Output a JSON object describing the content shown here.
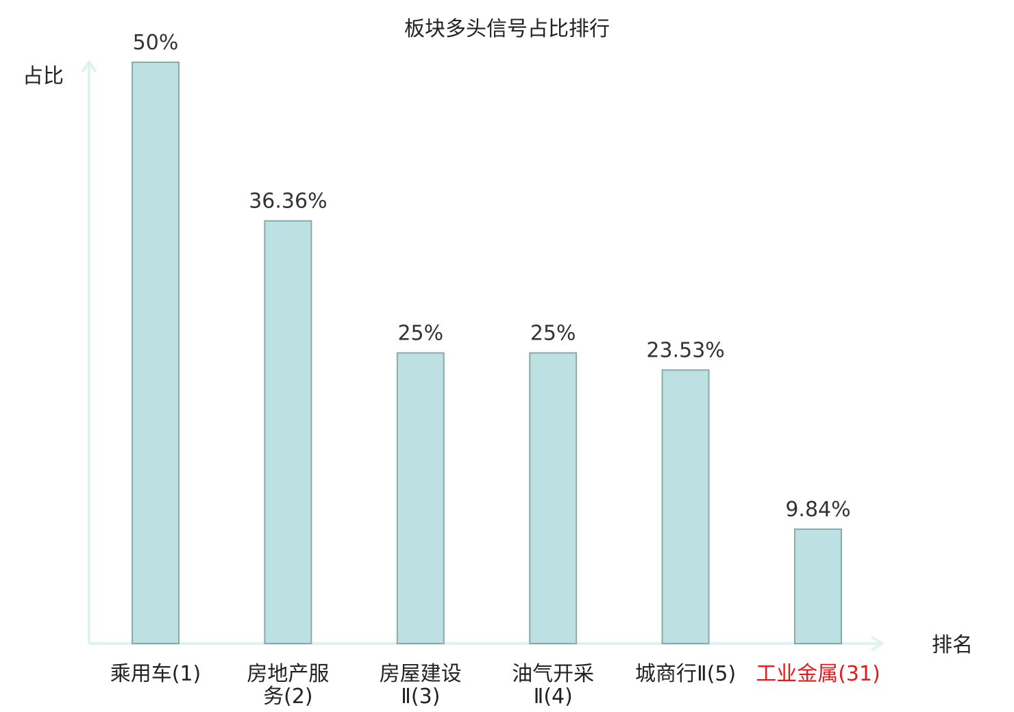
{
  "chart_data": {
    "type": "bar",
    "title": "板块多头信号占比排行",
    "ylabel": "占比",
    "xlabel": "排名",
    "categories": [
      [
        "乘用车(1)"
      ],
      [
        "房地产服",
        "务(2)"
      ],
      [
        "房屋建设",
        "Ⅱ(3)"
      ],
      [
        "油气开采",
        "Ⅱ(4)"
      ],
      [
        "城商行Ⅱ(5)"
      ],
      [
        "工业金属(31)"
      ]
    ],
    "values": [
      50,
      36.36,
      25,
      25,
      23.53,
      9.84
    ],
    "value_labels": [
      "50%",
      "36.36%",
      "25%",
      "25%",
      "23.53%",
      "9.84%"
    ],
    "category_colors": [
      "#222222",
      "#222222",
      "#222222",
      "#222222",
      "#222222",
      "#e8191b"
    ],
    "ylim": [
      0,
      50
    ],
    "bar_color": "#bde0e2",
    "bar_edge_color": "#8aa8aa",
    "axis_color": "#e0f2ef",
    "grid": false,
    "legend": "none"
  }
}
